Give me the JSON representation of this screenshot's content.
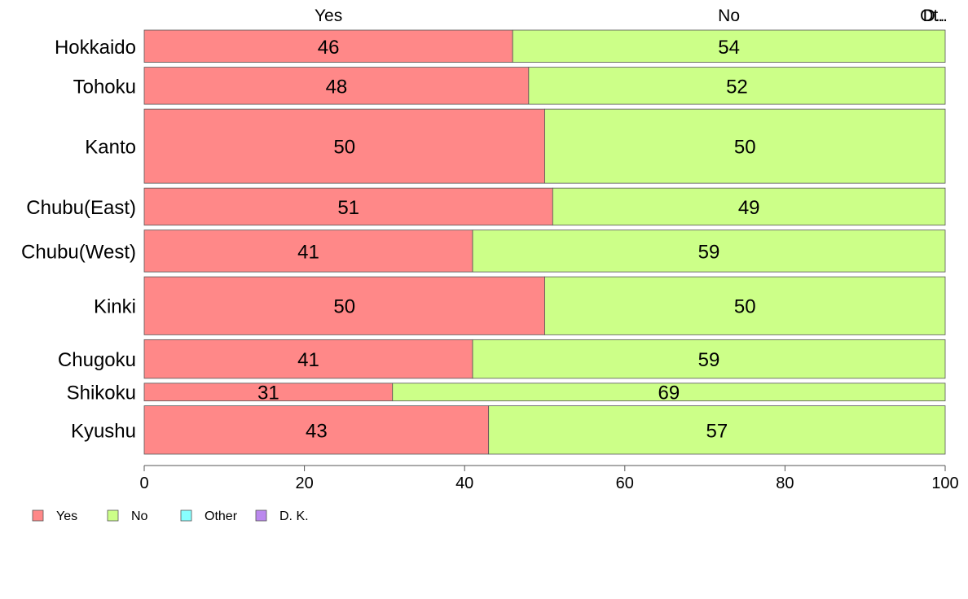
{
  "chart_data": {
    "type": "bar",
    "orientation": "horizontal",
    "stacked": true,
    "categories": [
      "Hokkaido",
      "Tohoku",
      "Kanto",
      "Chubu(East)",
      "Chubu(West)",
      "Kinki",
      "Chugoku",
      "Shikoku",
      "Kyushu"
    ],
    "category_weights": [
      1.0,
      1.15,
      2.3,
      1.15,
      1.3,
      1.8,
      1.2,
      0.55,
      1.5
    ],
    "series": [
      {
        "name": "Yes",
        "color": "#ff8888",
        "values": [
          46,
          48,
          50,
          51,
          41,
          50,
          41,
          31,
          43
        ]
      },
      {
        "name": "No",
        "color": "#ccff88",
        "values": [
          54,
          52,
          50,
          49,
          59,
          50,
          59,
          69,
          57
        ]
      },
      {
        "name": "Other",
        "color": "#88ffff",
        "values": [
          0,
          0,
          0,
          0,
          0,
          0,
          0,
          0,
          0
        ]
      },
      {
        "name": "D. K.",
        "color": "#bb88ee",
        "values": [
          0,
          0,
          0,
          0,
          0,
          0,
          0,
          0,
          0
        ]
      }
    ],
    "top_labels": [
      "Yes",
      "No",
      "Ot..",
      "D.."
    ],
    "xlim": [
      0,
      100
    ],
    "xticks": [
      "0",
      "20",
      "40",
      "60",
      "80",
      "100"
    ],
    "grid": false,
    "legend_position": "bottom-left"
  }
}
